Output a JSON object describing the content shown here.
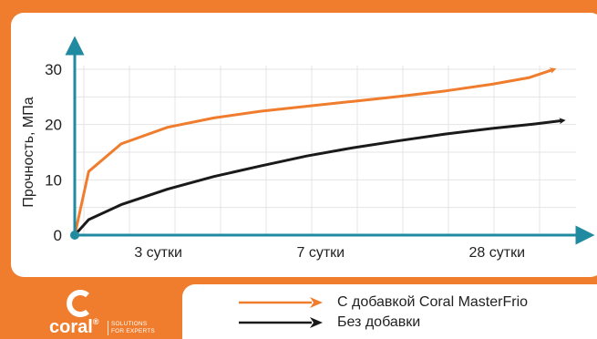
{
  "chart_data": {
    "type": "line",
    "title": "",
    "ylabel": "Прочность, МПа",
    "xlabel": "",
    "ylim": [
      0,
      30
    ],
    "yticks": [
      0,
      10,
      20,
      30
    ],
    "categories": [
      "3 сутки",
      "7 сутки",
      "28 сутки"
    ],
    "grid": true,
    "legend_position": "bottom",
    "series": [
      {
        "name": "С добавкой Coral MasterFrio",
        "color": "#ef7d2d",
        "points": [
          [
            0,
            0
          ],
          [
            0.3,
            11.5
          ],
          [
            1,
            16.5
          ],
          [
            2,
            19.5
          ],
          [
            3,
            21.2
          ],
          [
            4,
            22.4
          ],
          [
            5,
            23.3
          ],
          [
            6,
            24.2
          ],
          [
            7,
            25.1
          ],
          [
            8,
            26.1
          ],
          [
            9,
            27.3
          ],
          [
            9.8,
            28.5
          ],
          [
            10.3,
            29.9
          ]
        ]
      },
      {
        "name": "Без добавки",
        "color": "#1a1a1a",
        "points": [
          [
            0,
            0
          ],
          [
            0.3,
            2.8
          ],
          [
            1,
            5.5
          ],
          [
            2,
            8.3
          ],
          [
            3,
            10.6
          ],
          [
            4,
            12.5
          ],
          [
            5,
            14.3
          ],
          [
            6,
            15.8
          ],
          [
            7,
            17.1
          ],
          [
            8,
            18.3
          ],
          [
            9,
            19.3
          ],
          [
            9.9,
            20.1
          ],
          [
            10.5,
            20.7
          ]
        ]
      }
    ]
  },
  "brand": {
    "name": "coral",
    "registered": "®",
    "tagline_line1": "SOLUTIONS",
    "tagline_line2": "FOR EXPERTS"
  }
}
